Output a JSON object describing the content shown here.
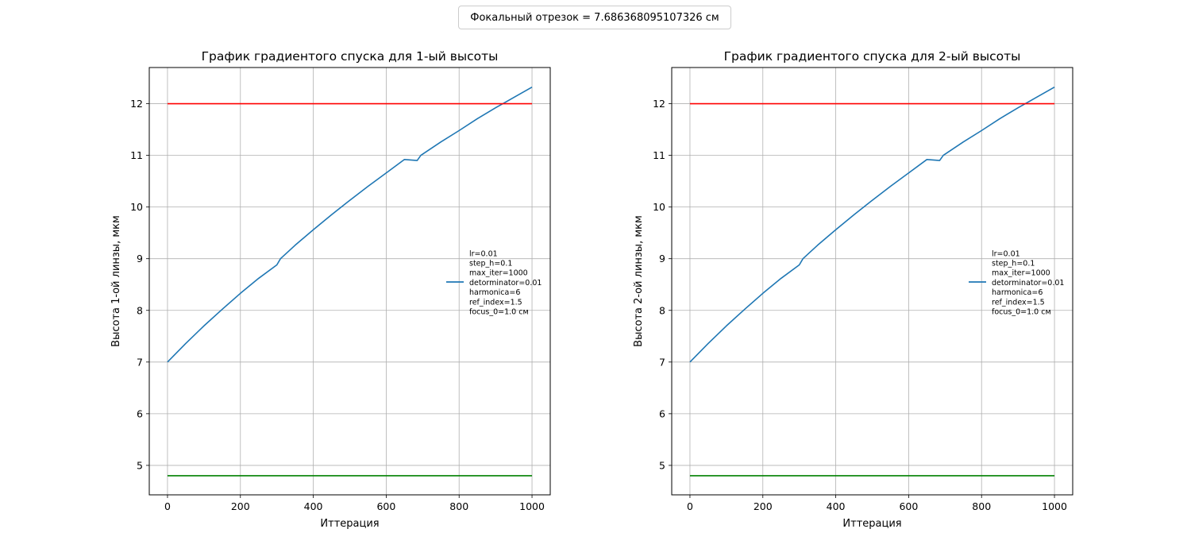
{
  "figure": {
    "suptitle": "Фокальный отрезок = 7.686368095107326 см"
  },
  "chart_data": [
    {
      "type": "line",
      "title": "График градиентого спуска для 1-ый высоты",
      "xlabel": "Иттерация",
      "ylabel": "Высота 1-ой линзы, мкм",
      "xlim": [
        -50,
        1050
      ],
      "ylim": [
        4.43,
        12.7
      ],
      "xticks": [
        0,
        200,
        400,
        600,
        800,
        1000
      ],
      "yticks": [
        5,
        6,
        7,
        8,
        9,
        10,
        11,
        12
      ],
      "grid": true,
      "legend_position": "center-right",
      "series": [
        {
          "name": "lr=0.01\nstep_h=0.1\nmax_iter=1000\ndetorminator=0.01\nharmonica=6\nref_index=1.5\nfocus_0=1.0 см",
          "color": "#1f77b4",
          "x": [
            0,
            50,
            100,
            150,
            200,
            250,
            300,
            310,
            350,
            400,
            450,
            500,
            550,
            600,
            650,
            685,
            695,
            750,
            800,
            850,
            900,
            950,
            1000
          ],
          "y": [
            7.0,
            7.36,
            7.7,
            8.02,
            8.33,
            8.62,
            8.88,
            9.0,
            9.26,
            9.56,
            9.85,
            10.13,
            10.4,
            10.66,
            10.92,
            10.9,
            11.0,
            11.26,
            11.48,
            11.71,
            11.92,
            12.12,
            12.32
          ]
        },
        {
          "color": "#ff0000",
          "x": [
            0,
            1000
          ],
          "y": [
            12.0,
            12.0
          ]
        },
        {
          "color": "#008000",
          "x": [
            0,
            1000
          ],
          "y": [
            4.8,
            4.8
          ]
        }
      ]
    },
    {
      "type": "line",
      "title": "График градиентого спуска для 2-ый высоты",
      "xlabel": "Иттерация",
      "ylabel": "Высота 2-ой линзы, мкм",
      "xlim": [
        -50,
        1050
      ],
      "ylim": [
        4.43,
        12.7
      ],
      "xticks": [
        0,
        200,
        400,
        600,
        800,
        1000
      ],
      "yticks": [
        5,
        6,
        7,
        8,
        9,
        10,
        11,
        12
      ],
      "grid": true,
      "legend_position": "center-right",
      "series": [
        {
          "name": "lr=0.01\nstep_h=0.1\nmax_iter=1000\ndetorminator=0.01\nharmonica=6\nref_index=1.5\nfocus_0=1.0 см",
          "color": "#1f77b4",
          "x": [
            0,
            50,
            100,
            150,
            200,
            250,
            300,
            310,
            350,
            400,
            450,
            500,
            550,
            600,
            650,
            685,
            695,
            750,
            800,
            850,
            900,
            950,
            1000
          ],
          "y": [
            7.0,
            7.36,
            7.7,
            8.02,
            8.33,
            8.62,
            8.88,
            9.0,
            9.26,
            9.56,
            9.85,
            10.13,
            10.4,
            10.66,
            10.92,
            10.9,
            11.0,
            11.26,
            11.48,
            11.71,
            11.92,
            12.12,
            12.32
          ]
        },
        {
          "color": "#ff0000",
          "x": [
            0,
            1000
          ],
          "y": [
            12.0,
            12.0
          ]
        },
        {
          "color": "#008000",
          "x": [
            0,
            1000
          ],
          "y": [
            4.8,
            4.8
          ]
        }
      ]
    }
  ]
}
